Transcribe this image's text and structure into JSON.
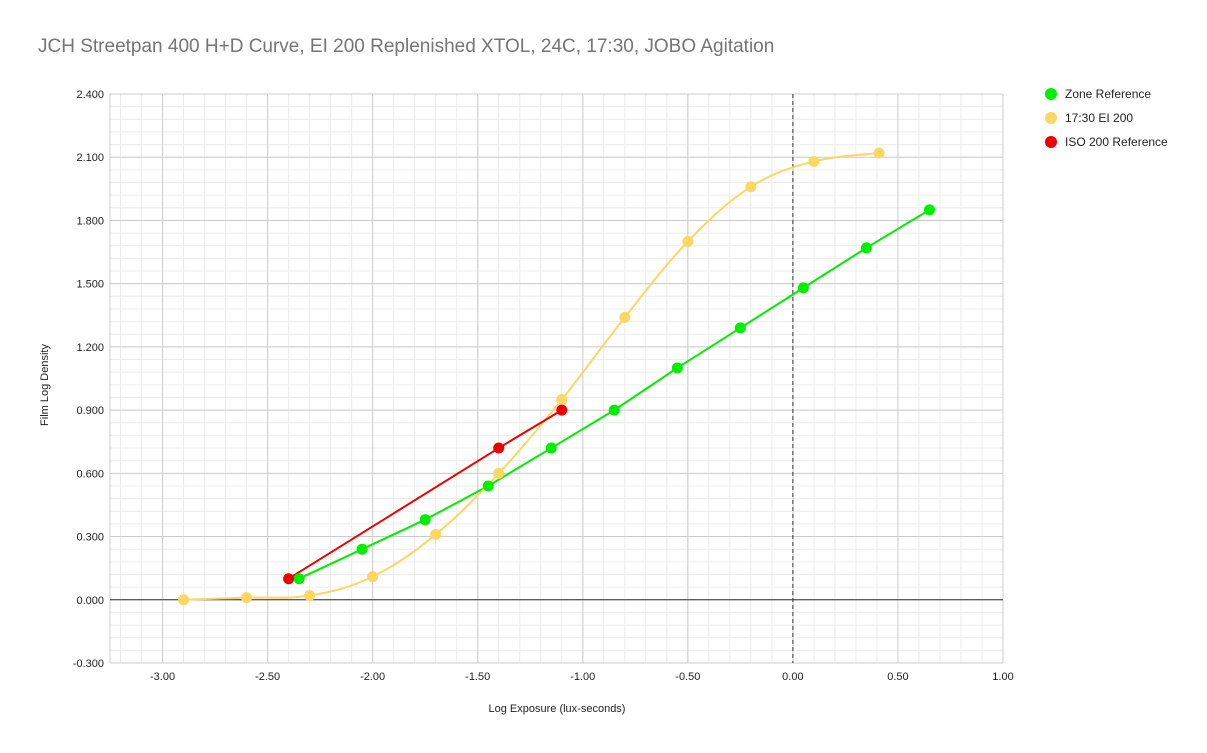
{
  "chart_data": {
    "type": "scatter",
    "title": "JCH Streetpan 400 H+D Curve, EI 200 Replenished XTOL, 24C, 17:30, JOBO Agitation",
    "xlabel": "Log Exposure (lux-seconds)",
    "ylabel": "Film Log Density",
    "xlim": [
      -3.25,
      1.0
    ],
    "ylim": [
      -0.3,
      2.4
    ],
    "xticks": [
      -3.0,
      -2.5,
      -2.0,
      -1.5,
      -1.0,
      -0.5,
      0.0,
      0.5,
      1.0
    ],
    "xtick_labels": [
      "-3.00",
      "-2.50",
      "-2.00",
      "-1.50",
      "-1.00",
      "-0.50",
      "0.00",
      "0.50",
      "1.00"
    ],
    "yticks": [
      -0.3,
      0.0,
      0.3,
      0.6,
      0.9,
      1.2,
      1.5,
      1.8,
      2.1,
      2.4
    ],
    "ytick_labels": [
      "-0.300",
      "0.000",
      "0.300",
      "0.600",
      "0.900",
      "1.200",
      "1.500",
      "1.800",
      "2.100",
      "2.400"
    ],
    "grid": true,
    "legend_position": "right",
    "series": [
      {
        "name": "Zone Reference",
        "color": "#00ee00",
        "line": "straight",
        "x": [
          -2.35,
          -2.05,
          -1.75,
          -1.45,
          -1.15,
          -0.85,
          -0.55,
          -0.25,
          0.05,
          0.35,
          0.65
        ],
        "y": [
          0.1,
          0.24,
          0.38,
          0.54,
          0.72,
          0.9,
          1.1,
          1.29,
          1.48,
          1.67,
          1.85
        ]
      },
      {
        "name": "17:30 EI 200",
        "color": "#fdd663",
        "line": "smooth",
        "x": [
          -2.9,
          -2.6,
          -2.3,
          -2.0,
          -1.7,
          -1.4,
          -1.1,
          -0.8,
          -0.5,
          -0.2,
          0.1,
          0.41
        ],
        "y": [
          0.0,
          0.01,
          0.02,
          0.11,
          0.31,
          0.6,
          0.95,
          1.34,
          1.7,
          1.96,
          2.08,
          2.12
        ]
      },
      {
        "name": "ISO 200 Reference",
        "color": "#ee0000",
        "line": "straight",
        "x": [
          -2.4,
          -1.4,
          -1.1
        ],
        "y": [
          0.1,
          0.72,
          0.9
        ]
      }
    ]
  }
}
